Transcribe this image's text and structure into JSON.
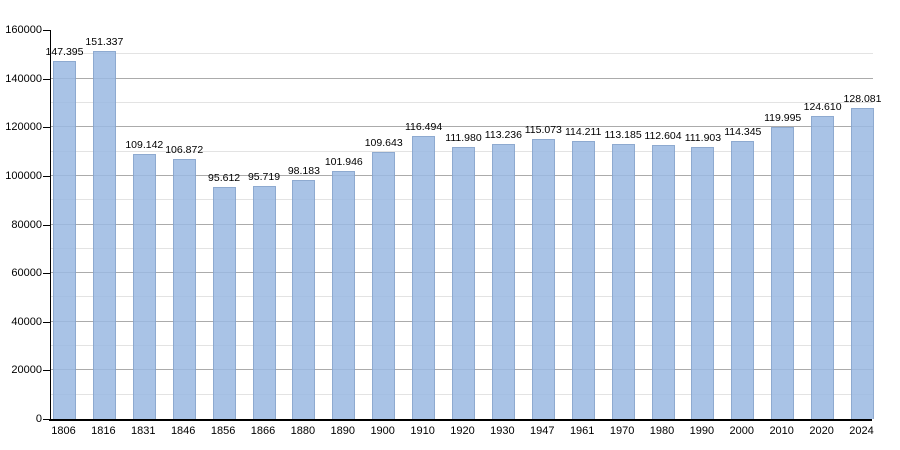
{
  "chart_data": {
    "type": "bar",
    "title": "",
    "xlabel": "",
    "ylabel": "",
    "categories": [
      "1806",
      "1816",
      "1831",
      "1846",
      "1856",
      "1866",
      "1880",
      "1890",
      "1900",
      "1910",
      "1920",
      "1930",
      "1947",
      "1961",
      "1970",
      "1980",
      "1990",
      "2000",
      "2010",
      "2020",
      "2024"
    ],
    "values": [
      147395,
      151337,
      109142,
      106872,
      95612,
      95719,
      98183,
      101946,
      109643,
      116494,
      111980,
      113236,
      115073,
      114211,
      113185,
      112604,
      111903,
      114345,
      119995,
      124610,
      128081
    ],
    "value_labels": [
      "147.395",
      "151.337",
      "109.142",
      "106.872",
      "95.612",
      "95.719",
      "98.183",
      "101.946",
      "109.643",
      "116.494",
      "111.980",
      "113.236",
      "115.073",
      "114.211",
      "113.185",
      "112.604",
      "111.903",
      "114.345",
      "119.995",
      "124.610",
      "128.081"
    ],
    "ylim": [
      0,
      160000
    ],
    "y_major_step": 20000,
    "y_minor_step": 10000,
    "y_ticks": [
      {
        "value": 0,
        "label": "0"
      },
      {
        "value": 20000,
        "label": "20000"
      },
      {
        "value": 40000,
        "label": "40000"
      },
      {
        "value": 60000,
        "label": "60000"
      },
      {
        "value": 80000,
        "label": "80000"
      },
      {
        "value": 100000,
        "label": "100000"
      },
      {
        "value": 120000,
        "label": "120000"
      },
      {
        "value": 140000,
        "label": "140000"
      },
      {
        "value": 160000,
        "label": "160000"
      }
    ],
    "grid": "horizontal-minor-and-major",
    "legend": "none",
    "colors": {
      "bar_fill": "rgba(154,185,226,0.85)",
      "bar_border": "rgba(120,150,190,0.55)",
      "minor_grid": "#e3e3e3",
      "major_grid": "#ababab",
      "axis": "#000000",
      "text": "#000000",
      "background": "#ffffff"
    }
  }
}
